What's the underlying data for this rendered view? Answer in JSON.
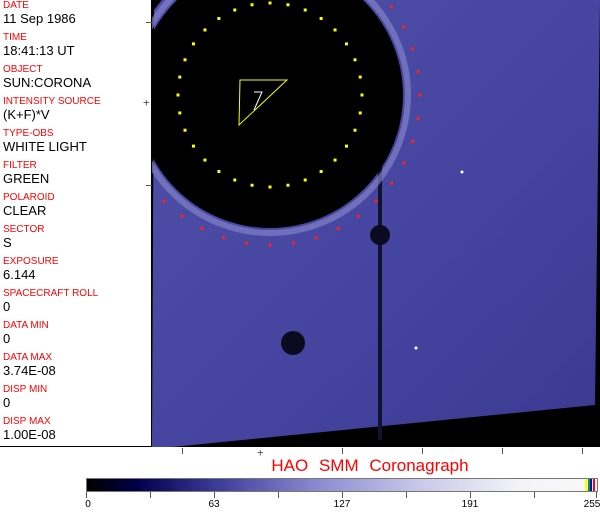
{
  "fields": [
    {
      "label": "DATE",
      "value": "11 Sep 1986"
    },
    {
      "label": "TIME",
      "value": "18:41:13 UT"
    },
    {
      "label": "OBJECT",
      "value": "SUN:CORONA"
    },
    {
      "label": "INTENSITY SOURCE",
      "value": "(K+F)*V"
    },
    {
      "label": "TYPE-OBS",
      "value": "WHITE LIGHT"
    },
    {
      "label": "FILTER",
      "value": "GREEN"
    },
    {
      "label": "POLAROID",
      "value": "CLEAR"
    },
    {
      "label": "SECTOR",
      "value": "S"
    },
    {
      "label": "EXPOSURE",
      "value": "6.144"
    },
    {
      "label": "SPACECRAFT ROLL",
      "value": "0"
    },
    {
      "label": "DATA MIN",
      "value": "0"
    },
    {
      "label": "DATA MAX",
      "value": "3.74E-08"
    },
    {
      "label": "DISP MIN",
      "value": "0"
    },
    {
      "label": "DISP MAX",
      "value": "1.00E-08"
    }
  ],
  "title": "HAO  SMM Coronagraph",
  "colorbar": {
    "ticks": [
      "0",
      "63",
      "127",
      "191",
      "255"
    ],
    "min": 0,
    "max": 255
  },
  "colors": {
    "label": "#ff0000",
    "corona": "#4a4aa0",
    "outer_ring": "#ff2020",
    "inner_ring": "#ffff00"
  }
}
